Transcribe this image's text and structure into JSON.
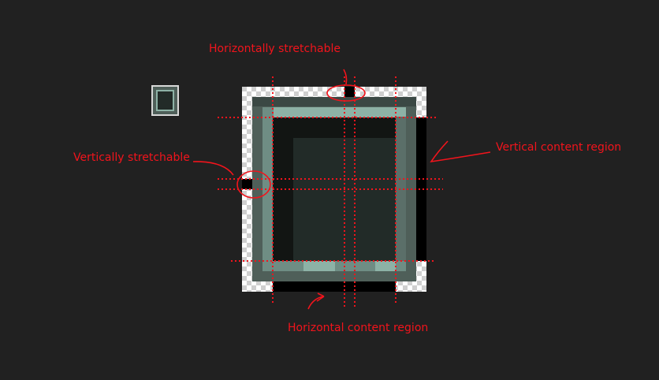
{
  "annotations": {
    "horizontally_stretchable": "Horizontally stretchable",
    "vertically_stretchable": "Vertically stretchable",
    "vertical_content_region": "Vertical content region",
    "horizontal_content_region": "Horizontal content region"
  },
  "colors": {
    "background": "#212121",
    "annotation": "#f2141c",
    "outer": "#4f5f59",
    "bevel_dark": "#3b4844",
    "highlight": "#8db2a6",
    "inner_dark": "#121513",
    "inner": "#222b28",
    "marker": "#000000"
  }
}
